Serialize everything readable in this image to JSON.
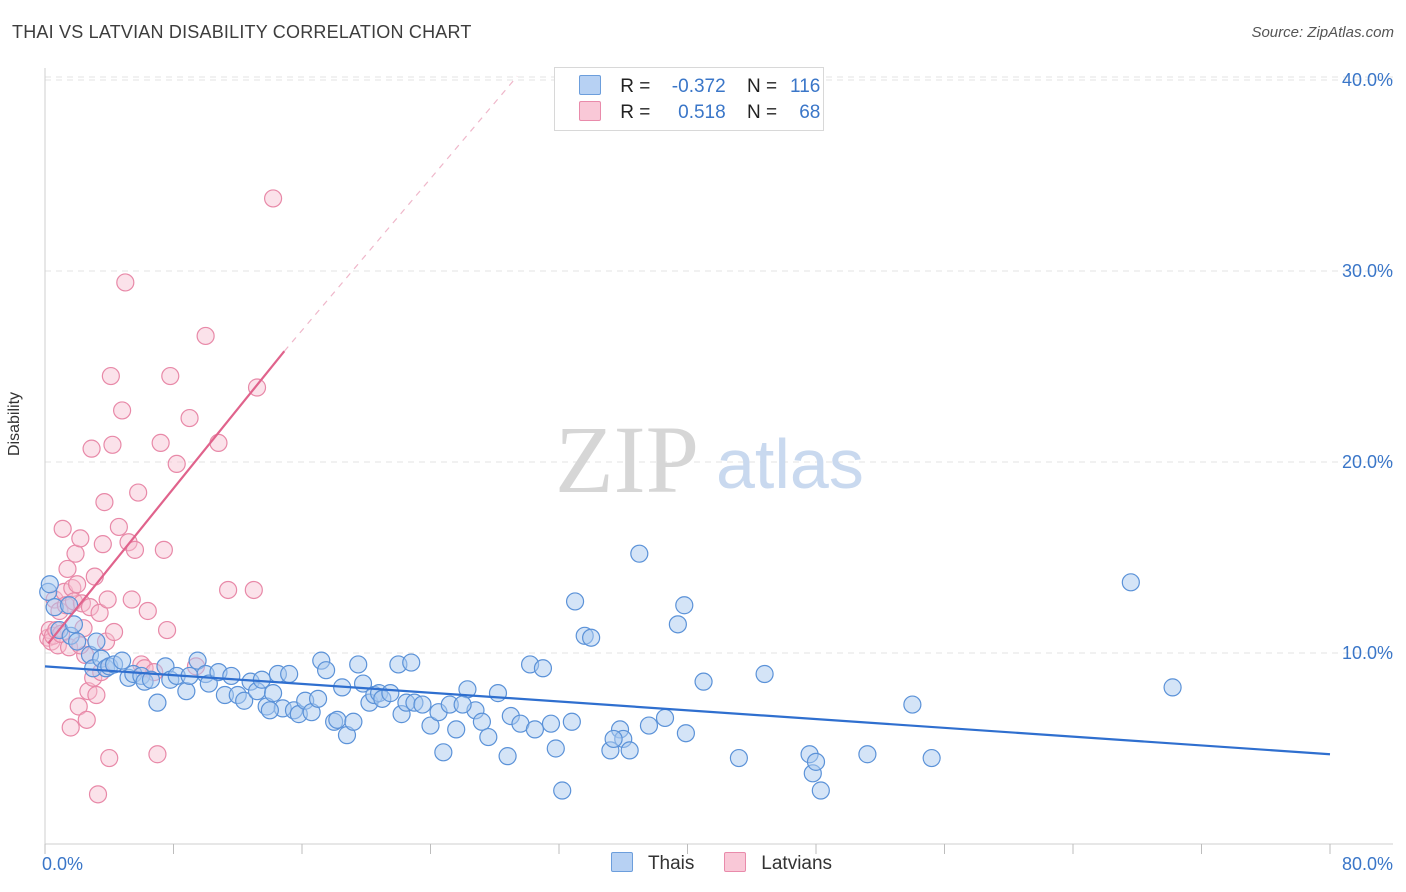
{
  "header": {
    "title": "THAI VS LATVIAN DISABILITY CORRELATION CHART",
    "source": "Source: ZipAtlas.com"
  },
  "watermark": {
    "zip": "ZIP",
    "atlas": "atlas"
  },
  "legend": {
    "thai": {
      "r_label": "R =",
      "r_value": "-0.372",
      "n_label": "N =",
      "n_value": "116"
    },
    "latvian": {
      "r_label": "R =",
      "r_value": "0.518",
      "n_label": "N =",
      "n_value": "68"
    }
  },
  "colors": {
    "thai_fill": "#a9c9f0",
    "thai_stroke": "#5b92d8",
    "thai_line": "#2f6fcf",
    "latvian_fill": "#f7bfd0",
    "latvian_stroke": "#e889a8",
    "latvian_line": "#e0638c",
    "tick_text": "#3a76c8",
    "grid": "#e3e3e3"
  },
  "chart_data": {
    "type": "scatter",
    "title": "THAI VS LATVIAN DISABILITY CORRELATION CHART",
    "xlabel": "",
    "ylabel": "Disability",
    "xlim": [
      0,
      80
    ],
    "ylim": [
      0,
      40
    ],
    "x_tick_labels": [
      "0.0%",
      "80.0%"
    ],
    "y_tick_labels": [
      "10.0%",
      "20.0%",
      "30.0%",
      "40.0%"
    ],
    "y_ticks": [
      10,
      20,
      30,
      40
    ],
    "grid": true,
    "legend_position": "bottom",
    "series": [
      {
        "name": "Thais",
        "r": -0.372,
        "n": 116,
        "trend": {
          "x": [
            0,
            80
          ],
          "y": [
            9.3,
            4.7
          ]
        },
        "points": [
          [
            0.2,
            13.2
          ],
          [
            0.3,
            13.6
          ],
          [
            0.6,
            12.4
          ],
          [
            0.9,
            11.2
          ],
          [
            1.5,
            12.5
          ],
          [
            1.6,
            10.9
          ],
          [
            1.8,
            11.5
          ],
          [
            2.0,
            10.6
          ],
          [
            2.8,
            9.9
          ],
          [
            3.0,
            9.2
          ],
          [
            3.2,
            10.6
          ],
          [
            3.5,
            9.7
          ],
          [
            3.8,
            9.2
          ],
          [
            4.0,
            9.3
          ],
          [
            4.3,
            9.4
          ],
          [
            4.8,
            9.6
          ],
          [
            5.2,
            8.7
          ],
          [
            5.5,
            8.9
          ],
          [
            6.0,
            8.8
          ],
          [
            6.2,
            8.5
          ],
          [
            6.6,
            8.6
          ],
          [
            7.0,
            7.4
          ],
          [
            7.5,
            9.3
          ],
          [
            7.8,
            8.6
          ],
          [
            8.2,
            8.8
          ],
          [
            8.8,
            8.0
          ],
          [
            9.0,
            8.8
          ],
          [
            9.5,
            9.6
          ],
          [
            10.0,
            8.9
          ],
          [
            10.2,
            8.4
          ],
          [
            10.8,
            9.0
          ],
          [
            11.2,
            7.8
          ],
          [
            11.6,
            8.8
          ],
          [
            12.0,
            7.8
          ],
          [
            12.4,
            7.5
          ],
          [
            12.8,
            8.5
          ],
          [
            13.2,
            8.0
          ],
          [
            13.5,
            8.6
          ],
          [
            13.8,
            7.2
          ],
          [
            14.2,
            7.9
          ],
          [
            14.5,
            8.9
          ],
          [
            14.8,
            7.1
          ],
          [
            15.2,
            8.9
          ],
          [
            15.5,
            7.0
          ],
          [
            15.8,
            6.8
          ],
          [
            16.2,
            7.5
          ],
          [
            16.6,
            6.9
          ],
          [
            17.0,
            7.6
          ],
          [
            17.2,
            9.6
          ],
          [
            17.5,
            9.1
          ],
          [
            18.0,
            6.4
          ],
          [
            18.2,
            6.5
          ],
          [
            18.5,
            8.2
          ],
          [
            18.8,
            5.7
          ],
          [
            19.2,
            6.4
          ],
          [
            19.5,
            9.4
          ],
          [
            19.8,
            8.4
          ],
          [
            20.2,
            7.4
          ],
          [
            20.5,
            7.8
          ],
          [
            20.8,
            7.9
          ],
          [
            21.0,
            7.6
          ],
          [
            21.5,
            7.9
          ],
          [
            22.0,
            9.4
          ],
          [
            22.2,
            6.8
          ],
          [
            22.5,
            7.4
          ],
          [
            22.8,
            9.5
          ],
          [
            23.0,
            7.4
          ],
          [
            23.5,
            7.3
          ],
          [
            24.0,
            6.2
          ],
          [
            24.5,
            6.9
          ],
          [
            24.8,
            4.8
          ],
          [
            25.2,
            7.3
          ],
          [
            25.6,
            6.0
          ],
          [
            26.3,
            8.1
          ],
          [
            26.8,
            7.0
          ],
          [
            27.2,
            6.4
          ],
          [
            27.6,
            5.6
          ],
          [
            28.2,
            7.9
          ],
          [
            28.8,
            4.6
          ],
          [
            29.0,
            6.7
          ],
          [
            29.6,
            6.3
          ],
          [
            30.2,
            9.4
          ],
          [
            30.5,
            6.0
          ],
          [
            31.0,
            9.2
          ],
          [
            31.5,
            6.3
          ],
          [
            31.8,
            5.0
          ],
          [
            32.2,
            2.8
          ],
          [
            32.8,
            6.4
          ],
          [
            33.6,
            10.9
          ],
          [
            33.0,
            12.7
          ],
          [
            34.0,
            10.8
          ],
          [
            35.2,
            4.9
          ],
          [
            35.8,
            6.0
          ],
          [
            36.0,
            5.5
          ],
          [
            36.4,
            4.9
          ],
          [
            37.0,
            15.2
          ],
          [
            37.6,
            6.2
          ],
          [
            38.6,
            6.6
          ],
          [
            39.4,
            11.5
          ],
          [
            39.8,
            12.5
          ],
          [
            39.9,
            5.8
          ],
          [
            41.0,
            8.5
          ],
          [
            43.2,
            4.5
          ],
          [
            44.8,
            8.9
          ],
          [
            47.6,
            4.7
          ],
          [
            47.8,
            3.7
          ],
          [
            48.0,
            4.3
          ],
          [
            48.3,
            2.8
          ],
          [
            51.2,
            4.7
          ],
          [
            54.0,
            7.3
          ],
          [
            55.2,
            4.5
          ],
          [
            67.6,
            13.7
          ],
          [
            70.2,
            8.2
          ],
          [
            35.4,
            5.5
          ],
          [
            26.0,
            7.3
          ],
          [
            14.0,
            7.0
          ]
        ]
      },
      {
        "name": "Latvians",
        "r": 0.518,
        "n": 68,
        "trend": {
          "x": [
            0.2,
            14.9
          ],
          "y": [
            10.5,
            25.8
          ]
        },
        "trend_extension": {
          "x": [
            14.9,
            29.4
          ],
          "y": [
            25.8,
            40.2
          ]
        },
        "points": [
          [
            0.2,
            10.8
          ],
          [
            0.3,
            11.2
          ],
          [
            0.4,
            10.6
          ],
          [
            0.5,
            10.9
          ],
          [
            0.6,
            12.8
          ],
          [
            0.7,
            11.2
          ],
          [
            0.8,
            10.4
          ],
          [
            0.9,
            12.2
          ],
          [
            1.0,
            11.0
          ],
          [
            1.1,
            16.5
          ],
          [
            1.2,
            13.2
          ],
          [
            1.3,
            12.5
          ],
          [
            1.4,
            14.4
          ],
          [
            1.5,
            10.3
          ],
          [
            1.6,
            6.1
          ],
          [
            1.7,
            13.4
          ],
          [
            1.8,
            12.7
          ],
          [
            1.9,
            15.2
          ],
          [
            2.0,
            13.6
          ],
          [
            2.1,
            7.2
          ],
          [
            2.2,
            16.0
          ],
          [
            2.3,
            12.6
          ],
          [
            2.4,
            11.3
          ],
          [
            2.5,
            9.9
          ],
          [
            2.6,
            6.5
          ],
          [
            2.7,
            8.0
          ],
          [
            2.8,
            12.4
          ],
          [
            2.9,
            20.7
          ],
          [
            3.0,
            8.7
          ],
          [
            3.1,
            14.0
          ],
          [
            3.2,
            7.8
          ],
          [
            3.3,
            2.6
          ],
          [
            3.4,
            12.1
          ],
          [
            3.5,
            9.0
          ],
          [
            3.6,
            15.7
          ],
          [
            3.7,
            17.9
          ],
          [
            3.8,
            10.6
          ],
          [
            3.9,
            12.8
          ],
          [
            4.0,
            4.5
          ],
          [
            4.1,
            24.5
          ],
          [
            4.2,
            20.9
          ],
          [
            4.3,
            11.1
          ],
          [
            4.6,
            16.6
          ],
          [
            4.8,
            22.7
          ],
          [
            5.0,
            29.4
          ],
          [
            5.2,
            15.8
          ],
          [
            5.4,
            12.8
          ],
          [
            5.6,
            15.4
          ],
          [
            5.8,
            18.4
          ],
          [
            6.0,
            9.4
          ],
          [
            6.2,
            9.2
          ],
          [
            6.4,
            12.2
          ],
          [
            6.8,
            9.0
          ],
          [
            7.0,
            4.7
          ],
          [
            7.2,
            21.0
          ],
          [
            7.4,
            15.4
          ],
          [
            7.6,
            11.2
          ],
          [
            7.8,
            24.5
          ],
          [
            8.2,
            19.9
          ],
          [
            9.0,
            22.3
          ],
          [
            9.4,
            9.3
          ],
          [
            10.0,
            26.6
          ],
          [
            10.8,
            21.0
          ],
          [
            11.4,
            13.3
          ],
          [
            13.0,
            13.3
          ],
          [
            13.2,
            23.9
          ],
          [
            14.2,
            33.8
          ],
          [
            2.2,
            10.4
          ]
        ]
      }
    ]
  },
  "bottom_legend": {
    "thai_label": "Thais",
    "latvian_label": "Latvians"
  }
}
